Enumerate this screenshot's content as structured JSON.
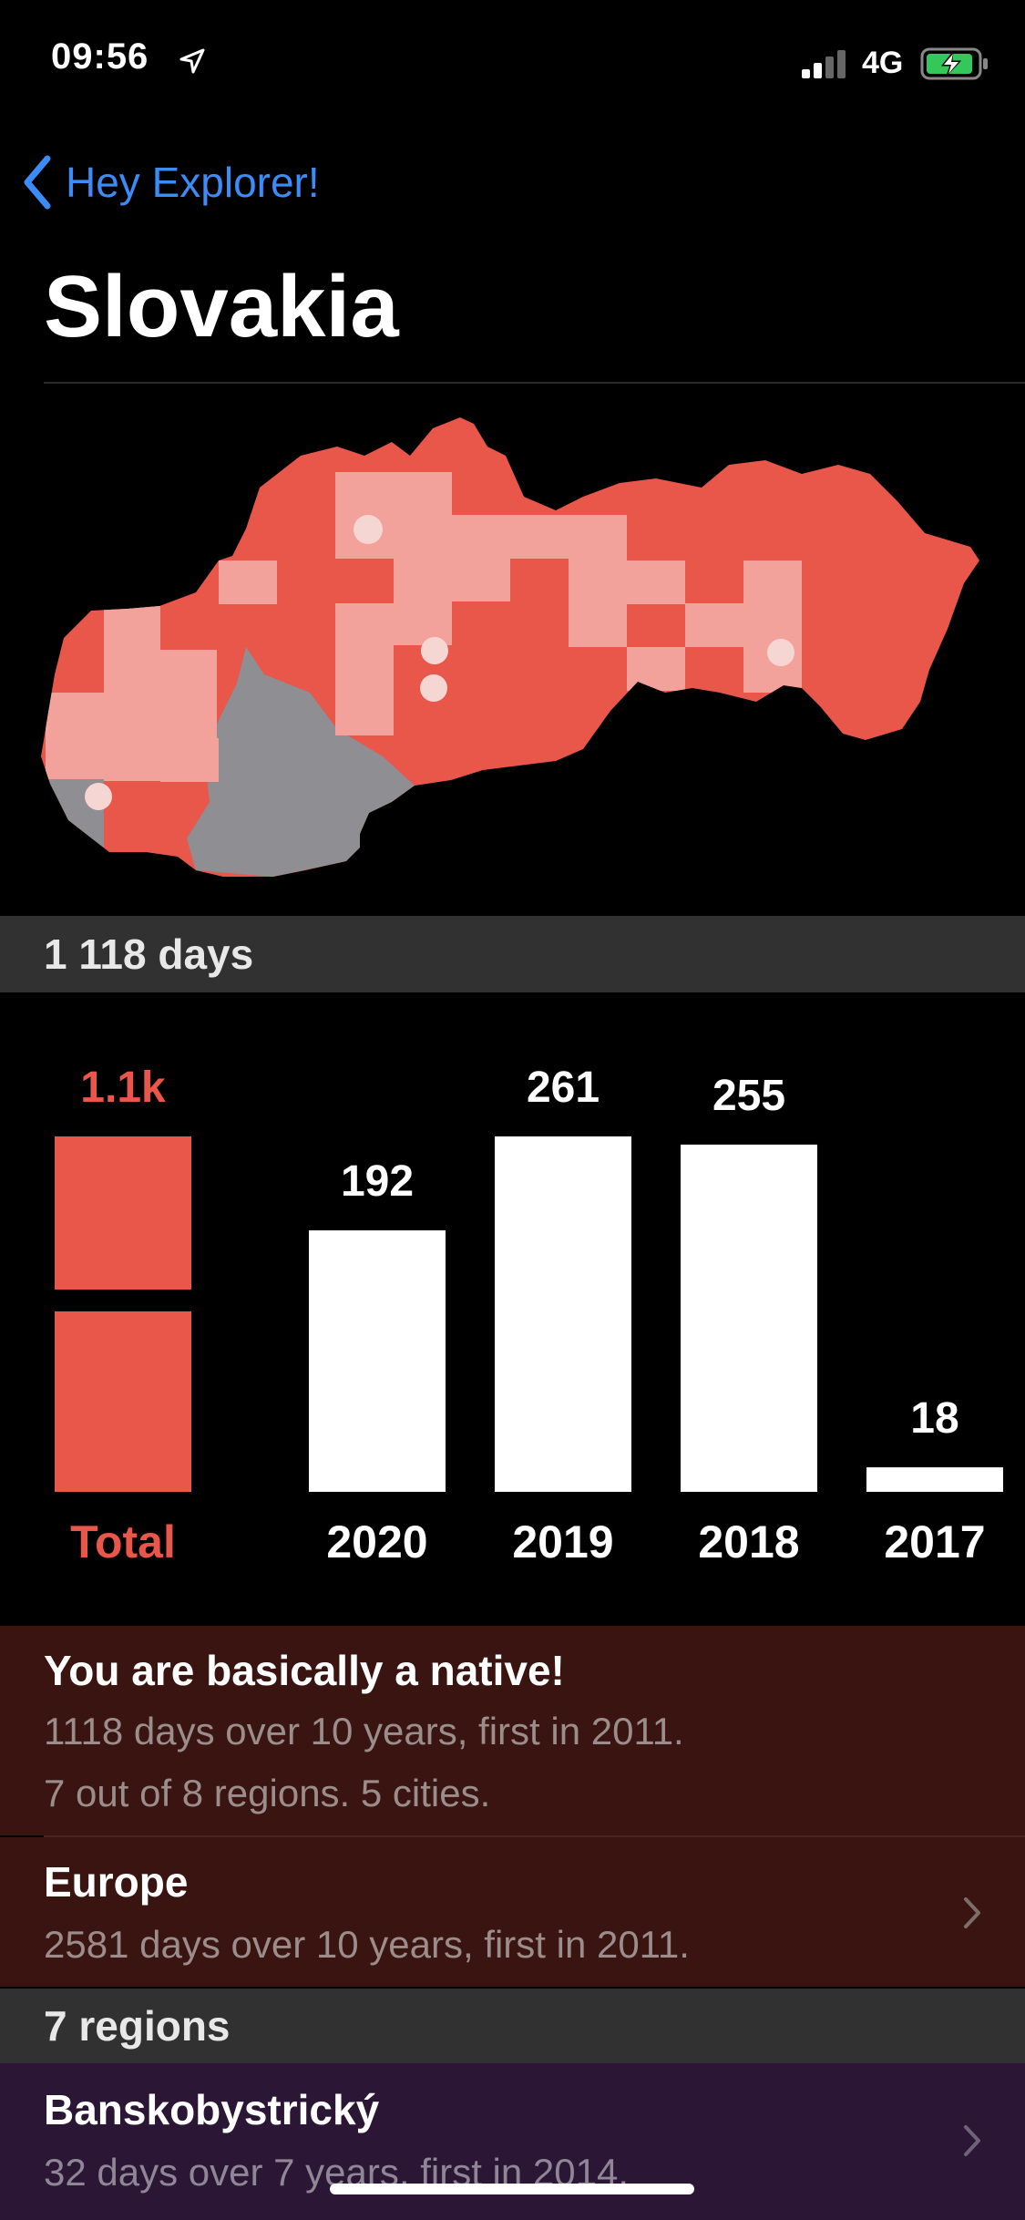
{
  "status_bar": {
    "time": "09:56",
    "network": "4G"
  },
  "nav": {
    "back_label": "Hey Explorer!"
  },
  "page": {
    "title": "Slovakia"
  },
  "days_header": "1 118 days",
  "chart_data": {
    "type": "bar",
    "categories": [
      "Total",
      "2020",
      "2019",
      "2018",
      "2017"
    ],
    "values": [
      1118,
      192,
      261,
      255,
      18
    ],
    "value_labels": [
      "1.1k",
      "192",
      "261",
      "255",
      "18"
    ],
    "title": "",
    "xlabel": "",
    "ylabel": "",
    "colors": {
      "total": "#e9574a",
      "years": "#ffffff"
    }
  },
  "summary": {
    "title": "You are basically a native!",
    "line1": "1118 days over 10 years, first in 2011.",
    "line2": "7 out of 8 regions. 5 cities."
  },
  "europe": {
    "title": "Europe",
    "subtitle": "2581 days over 10 years, first in 2011."
  },
  "regions_header": "7 regions",
  "region_item": {
    "title": "Banskobystrický",
    "subtitle": "32 days over 7 years, first in 2014."
  },
  "colors": {
    "accent_blue": "#3b8cf6",
    "visited_red": "#e9574a",
    "unvisited_gray": "#8e8e93",
    "card_red": "#3a1411",
    "card_purple": "#2c1635"
  }
}
